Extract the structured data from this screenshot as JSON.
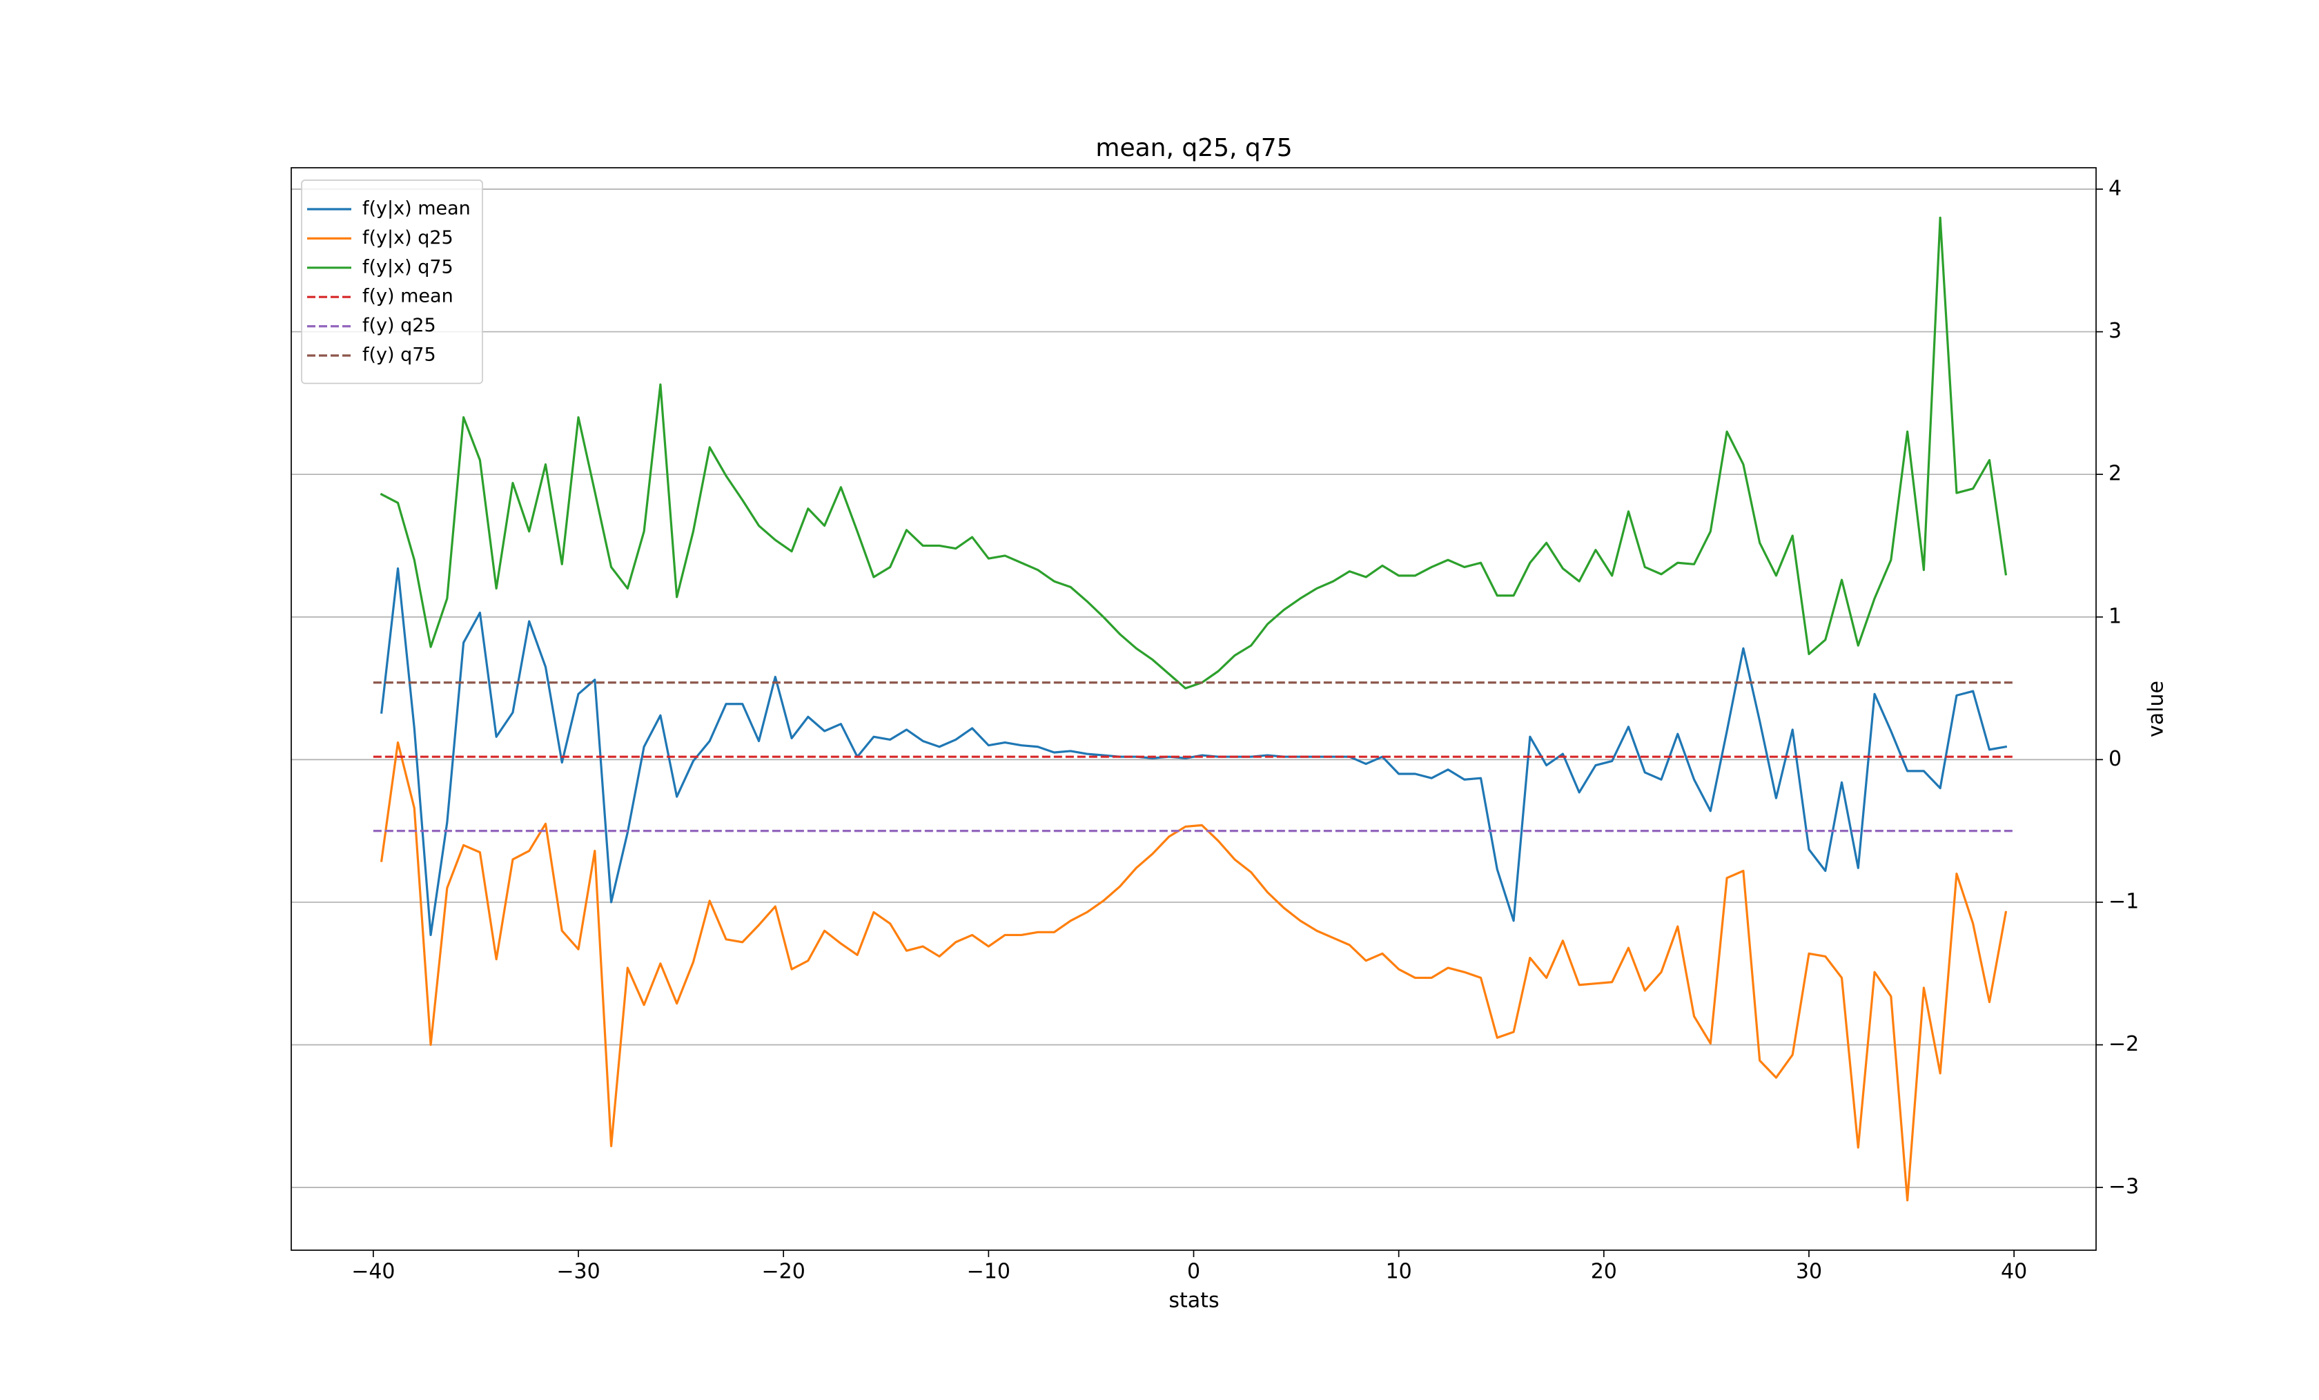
{
  "chart_data": {
    "type": "line",
    "title": "mean, q25, q75",
    "xlabel": "stats",
    "ylabel": "value",
    "yaxis_side": "right",
    "grid": "y",
    "legend": "upper left",
    "x": [
      -39.6,
      -38.8,
      -38,
      -37.2,
      -36.4,
      -35.6,
      -34.8,
      -34,
      -33.2,
      -32.4,
      -31.6,
      -30.8,
      -30,
      -29.2,
      -28.4,
      -27.6,
      -26.8,
      -26,
      -25.2,
      -24.4,
      -23.6,
      -22.8,
      -22,
      -21.2,
      -20.4,
      -19.6,
      -18.8,
      -18,
      -17.2,
      -16.4,
      -15.6,
      -14.8,
      -14,
      -13.2,
      -12.4,
      -11.6,
      -10.8,
      -10,
      -9.2,
      -8.4,
      -7.6,
      -6.8,
      -6,
      -5.2,
      -4.4,
      -3.6,
      -2.8,
      -2,
      -1.2,
      -0.4,
      0.4,
      1.2,
      2,
      2.8,
      3.6,
      4.4,
      5.2,
      6,
      6.8,
      7.6,
      8.4,
      9.2,
      10,
      10.8,
      11.6,
      12.4,
      13.2,
      14,
      14.8,
      15.6,
      16.4,
      17.2,
      18,
      18.8,
      19.6,
      20.4,
      21.2,
      22,
      22.8,
      23.6,
      24.4,
      25.2,
      26,
      26.8,
      27.6,
      28.4,
      29.2,
      30,
      30.8,
      31.6,
      32.4,
      33.2,
      34,
      34.8,
      35.6,
      36.4,
      37.2,
      38,
      38.8,
      39.6
    ],
    "series": [
      {
        "name": "f(y|x) mean",
        "color": "#1f77b4",
        "linestyle": "solid",
        "values": [
          0.33,
          1.34,
          0.22,
          -1.23,
          -0.44,
          0.82,
          1.03,
          0.16,
          0.33,
          0.97,
          0.65,
          -0.02,
          0.46,
          0.56,
          -1.0,
          -0.51,
          0.09,
          0.31,
          -0.26,
          -0.01,
          0.13,
          0.39,
          0.39,
          0.13,
          0.58,
          0.15,
          0.3,
          0.2,
          0.25,
          0.02,
          0.16,
          0.14,
          0.21,
          0.13,
          0.09,
          0.14,
          0.22,
          0.1,
          0.12,
          0.1,
          0.09,
          0.05,
          0.06,
          0.04,
          0.03,
          0.02,
          0.02,
          0.01,
          0.02,
          0.01,
          0.03,
          0.02,
          0.02,
          0.02,
          0.03,
          0.02,
          0.02,
          0.02,
          0.02,
          0.02,
          -0.03,
          0.02,
          -0.1,
          -0.1,
          -0.13,
          -0.07,
          -0.14,
          -0.13,
          -0.77,
          -1.13,
          0.16,
          -0.04,
          0.04,
          -0.23,
          -0.04,
          -0.01,
          0.23,
          -0.09,
          -0.14,
          0.18,
          -0.14,
          -0.36,
          0.2,
          0.78,
          0.27,
          -0.27,
          0.21,
          -0.63,
          -0.78,
          -0.16,
          -0.76,
          0.46,
          0.2,
          -0.08,
          -0.08,
          -0.2,
          0.45,
          0.48,
          0.07,
          0.09
        ]
      },
      {
        "name": "f(y|x) q25",
        "color": "#ff7f0e",
        "linestyle": "solid",
        "values": [
          -0.71,
          0.12,
          -0.34,
          -2.0,
          -0.9,
          -0.6,
          -0.65,
          -1.4,
          -0.7,
          -0.64,
          -0.45,
          -1.2,
          -1.33,
          -0.64,
          -2.71,
          -1.46,
          -1.72,
          -1.43,
          -1.71,
          -1.42,
          -0.99,
          -1.26,
          -1.28,
          -1.16,
          -1.03,
          -1.47,
          -1.41,
          -1.2,
          -1.29,
          -1.37,
          -1.07,
          -1.15,
          -1.34,
          -1.31,
          -1.38,
          -1.28,
          -1.23,
          -1.31,
          -1.23,
          -1.23,
          -1.21,
          -1.21,
          -1.13,
          -1.07,
          -0.99,
          -0.89,
          -0.76,
          -0.66,
          -0.54,
          -0.47,
          -0.46,
          -0.57,
          -0.7,
          -0.79,
          -0.93,
          -1.04,
          -1.13,
          -1.2,
          -1.25,
          -1.3,
          -1.41,
          -1.36,
          -1.47,
          -1.53,
          -1.53,
          -1.46,
          -1.49,
          -1.53,
          -1.95,
          -1.91,
          -1.39,
          -1.53,
          -1.27,
          -1.58,
          -1.57,
          -1.56,
          -1.32,
          -1.62,
          -1.49,
          -1.17,
          -1.8,
          -1.99,
          -0.83,
          -0.78,
          -2.11,
          -2.23,
          -2.07,
          -1.36,
          -1.38,
          -1.53,
          -2.72,
          -1.49,
          -1.66,
          -3.09,
          -1.6,
          -2.2,
          -0.8,
          -1.15,
          -1.7,
          -1.07
        ]
      },
      {
        "name": "f(y|x) q75",
        "color": "#2ca02c",
        "linestyle": "solid",
        "values": [
          1.86,
          1.8,
          1.4,
          0.79,
          1.13,
          2.4,
          2.1,
          1.2,
          1.94,
          1.6,
          2.07,
          1.37,
          2.4,
          1.88,
          1.35,
          1.2,
          1.6,
          2.63,
          1.14,
          1.6,
          2.19,
          1.99,
          1.82,
          1.64,
          1.54,
          1.46,
          1.76,
          1.64,
          1.91,
          1.6,
          1.28,
          1.35,
          1.61,
          1.5,
          1.5,
          1.48,
          1.56,
          1.41,
          1.43,
          1.38,
          1.33,
          1.25,
          1.21,
          1.11,
          1.0,
          0.88,
          0.78,
          0.7,
          0.6,
          0.5,
          0.54,
          0.62,
          0.73,
          0.8,
          0.95,
          1.05,
          1.13,
          1.2,
          1.25,
          1.32,
          1.28,
          1.36,
          1.29,
          1.29,
          1.35,
          1.4,
          1.35,
          1.38,
          1.15,
          1.15,
          1.38,
          1.52,
          1.34,
          1.25,
          1.47,
          1.29,
          1.74,
          1.35,
          1.3,
          1.38,
          1.37,
          1.6,
          2.3,
          2.07,
          1.52,
          1.29,
          1.57,
          0.74,
          0.84,
          1.26,
          0.8,
          1.13,
          1.4,
          2.3,
          1.33,
          3.8,
          1.87,
          1.9,
          2.1,
          1.3
        ]
      },
      {
        "name": "f(y) mean",
        "color": "#d62728",
        "linestyle": "dashed",
        "x": [
          -40,
          40
        ],
        "values": [
          0.02,
          0.02
        ]
      },
      {
        "name": "f(y) q25",
        "color": "#9467bd",
        "linestyle": "dashed",
        "x": [
          -40,
          40
        ],
        "values": [
          -0.5,
          -0.5
        ]
      },
      {
        "name": "f(y) q75",
        "color": "#8c564b",
        "linestyle": "dashed",
        "x": [
          -40,
          40
        ],
        "values": [
          0.54,
          0.54
        ]
      }
    ],
    "xlim": [
      -44,
      44
    ],
    "xticks": [
      {
        "value": -40,
        "label": "−40"
      },
      {
        "value": -30,
        "label": "−30"
      },
      {
        "value": -20,
        "label": "−20"
      },
      {
        "value": -10,
        "label": "−10"
      },
      0,
      10,
      20,
      30,
      40
    ],
    "ylim": [
      -3.44,
      4.15
    ],
    "yticks": [
      {
        "value": -3,
        "label": "−3"
      },
      {
        "value": -2,
        "label": "−2"
      },
      {
        "value": -1,
        "label": "−1"
      },
      0,
      1,
      2,
      3,
      4
    ]
  }
}
